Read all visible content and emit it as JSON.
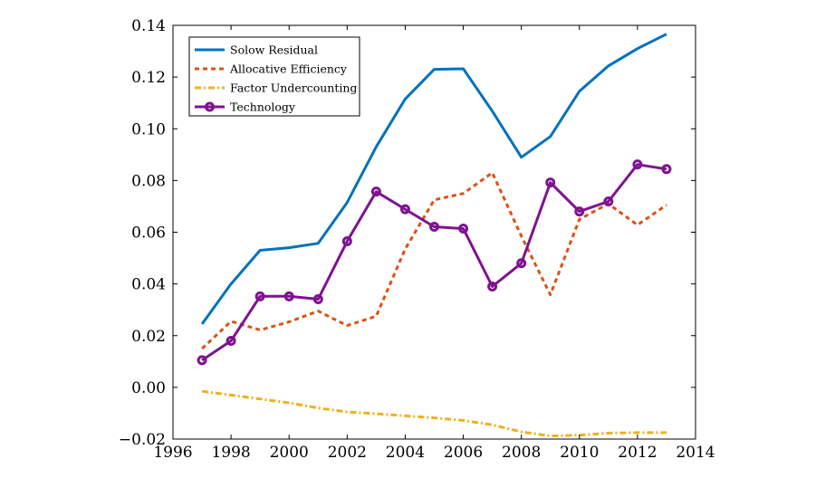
{
  "chart_data": {
    "type": "line",
    "title": "",
    "xlabel": "",
    "ylabel": "",
    "xlim": [
      1996,
      2014
    ],
    "ylim": [
      -0.02,
      0.14
    ],
    "x_ticks": [
      1996,
      1998,
      2000,
      2002,
      2004,
      2006,
      2008,
      2010,
      2012,
      2014
    ],
    "y_ticks": [
      -0.02,
      0.0,
      0.02,
      0.04,
      0.06,
      0.08,
      0.1,
      0.12,
      0.14
    ],
    "x_tick_labels": [
      "1996",
      "1998",
      "2000",
      "2002",
      "2004",
      "2006",
      "2008",
      "2010",
      "2012",
      "2014"
    ],
    "y_tick_labels": [
      "−0.02",
      "0.00",
      "0.02",
      "0.04",
      "0.06",
      "0.08",
      "0.10",
      "0.12",
      "0.14"
    ],
    "grid": false,
    "legend_position": "top-left",
    "x": [
      1997,
      1998,
      1999,
      2000,
      2001,
      2002,
      2003,
      2004,
      2005,
      2006,
      2007,
      2008,
      2009,
      2010,
      2011,
      2012,
      2013
    ],
    "series": [
      {
        "name": "Solow Residual",
        "color": "#0072bd",
        "style": "solid",
        "marker": "none",
        "values": [
          0.0245,
          0.04,
          0.053,
          0.054,
          0.0557,
          0.0715,
          0.093,
          0.1115,
          0.123,
          0.1232,
          0.1068,
          0.089,
          0.097,
          0.1145,
          0.1243,
          0.131,
          0.1366
        ]
      },
      {
        "name": "Allocative Efficiency",
        "color": "#d95319",
        "style": "dashed",
        "marker": "none",
        "values": [
          0.015,
          0.0255,
          0.0222,
          0.0253,
          0.0295,
          0.0239,
          0.0275,
          0.0535,
          0.0725,
          0.075,
          0.083,
          0.0585,
          0.0358,
          0.065,
          0.071,
          0.0628,
          0.0705
        ]
      },
      {
        "name": "Factor Undercounting",
        "color": "#edb120",
        "style": "dashdot",
        "marker": "none",
        "values": [
          -0.0015,
          -0.003,
          -0.0045,
          -0.006,
          -0.008,
          -0.0095,
          -0.0102,
          -0.011,
          -0.0118,
          -0.0128,
          -0.0145,
          -0.0172,
          -0.0188,
          -0.0185,
          -0.0177,
          -0.0175,
          -0.0175
        ]
      },
      {
        "name": "Technology",
        "color": "#7e138f",
        "style": "solid",
        "marker": "circle",
        "values": [
          0.0105,
          0.018,
          0.0352,
          0.0352,
          0.0341,
          0.0565,
          0.0757,
          0.0689,
          0.0621,
          0.0614,
          0.039,
          0.048,
          0.0792,
          0.068,
          0.0719,
          0.0862,
          0.0844
        ]
      }
    ]
  }
}
